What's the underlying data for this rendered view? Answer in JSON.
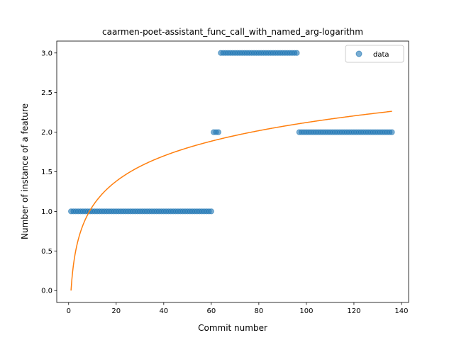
{
  "chart_data": {
    "type": "scatter",
    "title": "caarmen-poet-assistant_func_call_with_named_arg-logarithm",
    "xlabel": "Commit number",
    "ylabel": "Number of instance of a feature",
    "xlim": [
      -5,
      143
    ],
    "ylim": [
      -0.15,
      3.15
    ],
    "xticks": [
      0,
      20,
      40,
      60,
      80,
      100,
      120,
      140
    ],
    "yticks": [
      0.0,
      0.5,
      1.0,
      1.5,
      2.0,
      2.5,
      3.0
    ],
    "legend": {
      "position": "top-right",
      "entries": [
        "data"
      ]
    },
    "grid": false,
    "series": [
      {
        "name": "data",
        "kind": "scatter",
        "color": "#1f77b4",
        "segments": [
          {
            "x_from": 1,
            "x_to": 60,
            "y": 1
          },
          {
            "x_from": 61,
            "x_to": 63,
            "y": 2
          },
          {
            "x_from": 64,
            "x_to": 96,
            "y": 3
          },
          {
            "x_from": 97,
            "x_to": 136,
            "y": 2
          }
        ]
      },
      {
        "kind": "line",
        "color": "#ff7f0e",
        "function": "logarithmic",
        "a": 0.4607,
        "b": 0.0,
        "x_range": [
          1,
          136
        ]
      }
    ]
  }
}
